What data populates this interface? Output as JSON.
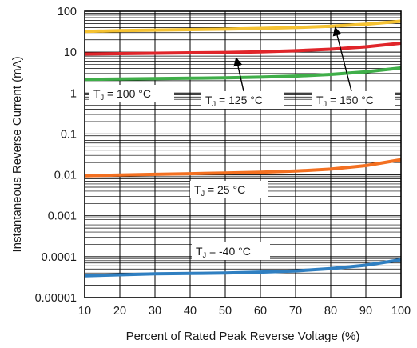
{
  "chart_data": {
    "type": "line",
    "title": "",
    "xlabel": "Percent of Rated Peak Reverse Voltage (%)",
    "ylabel": "Instantaneous Reverse Current (mA)",
    "xlim": [
      10,
      100
    ],
    "ylim": [
      1e-05,
      100
    ],
    "yscale": "log",
    "grid": true,
    "x_ticks": [
      "10",
      "20",
      "30",
      "40",
      "50",
      "60",
      "70",
      "80",
      "90",
      "100"
    ],
    "y_ticks": [
      "0.00001",
      "0.0001",
      "0.001",
      "0.01",
      "0.1",
      "1",
      "10",
      "100"
    ],
    "x": [
      10,
      20,
      30,
      40,
      50,
      60,
      70,
      80,
      90,
      100
    ],
    "series": [
      {
        "name": "T_J = 150 °C",
        "color": "#f5c232",
        "values": [
          32,
          33.5,
          34.5,
          35.5,
          36.5,
          38,
          40,
          43,
          48,
          57
        ]
      },
      {
        "name": "T_J = 125 °C",
        "color": "#e0252a",
        "values": [
          9,
          9.2,
          9.4,
          9.6,
          9.8,
          10.2,
          10.8,
          11.8,
          13.5,
          16.5
        ]
      },
      {
        "name": "T_J = 100 °C",
        "color": "#3fae49",
        "values": [
          2.15,
          2.2,
          2.25,
          2.3,
          2.35,
          2.45,
          2.6,
          2.85,
          3.3,
          4.1
        ]
      },
      {
        "name": "T_J = 25 °C",
        "color": "#f37021",
        "values": [
          0.0095,
          0.0099,
          0.0103,
          0.0107,
          0.0111,
          0.0116,
          0.0124,
          0.0138,
          0.0168,
          0.0235
        ]
      },
      {
        "name": "T_J = -40 °C",
        "color": "#2f7fc1",
        "values": [
          3.4e-05,
          3.6e-05,
          3.8e-05,
          3.9e-05,
          4e-05,
          4.2e-05,
          4.5e-05,
          5.1e-05,
          6.2e-05,
          8.4e-05
        ]
      }
    ],
    "annotations": [
      {
        "prefix": "T",
        "sub": "J",
        "rest": " = 100 °C"
      },
      {
        "prefix": "T",
        "sub": "J",
        "rest": " = 125 °C"
      },
      {
        "prefix": "T",
        "sub": "J",
        "rest": " = 150 °C"
      },
      {
        "prefix": "T",
        "sub": "J",
        "rest": " = 25 °C"
      },
      {
        "prefix": "T",
        "sub": "J",
        "rest": " = -40 °C"
      }
    ]
  }
}
